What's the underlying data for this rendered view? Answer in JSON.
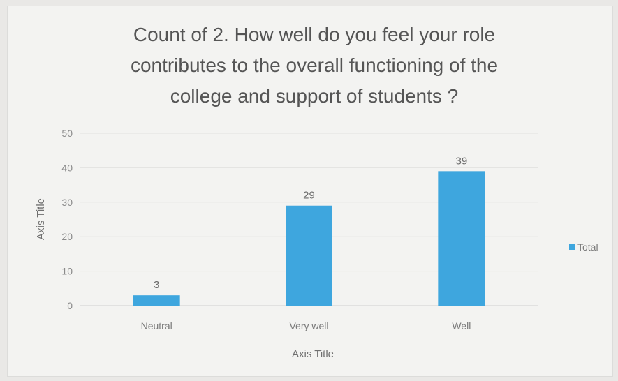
{
  "chart_data": {
    "type": "bar",
    "title_lines": [
      "Count of 2. How well do you feel your role",
      "contributes to the overall functioning of the",
      "college and support of students ?"
    ],
    "categories": [
      "Neutral",
      "Very well",
      "Well"
    ],
    "series": [
      {
        "name": "Total",
        "values": [
          3,
          29,
          39
        ],
        "color": "#3ea6de"
      }
    ],
    "xlabel": "Axis Title",
    "ylabel": "Axis Title",
    "ylim": [
      0,
      50
    ],
    "yticks": [
      0,
      10,
      20,
      30,
      40,
      50
    ],
    "grid": true,
    "data_labels": true,
    "legend": {
      "position": "right",
      "entries": [
        "Total"
      ]
    }
  }
}
